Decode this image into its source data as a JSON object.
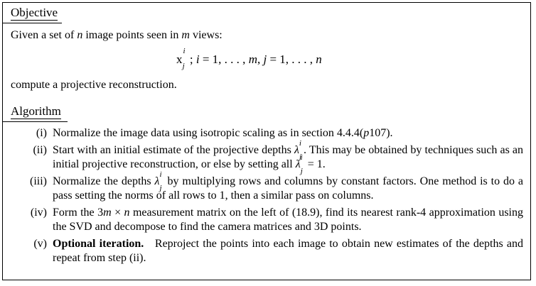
{
  "objective": {
    "heading": "Objective",
    "intro": "Given a set of n image points seen in m views:",
    "formula": "x_j^i ; i = 1, . . . , m, j = 1, . . . , n",
    "outro": "compute a projective reconstruction."
  },
  "algorithm": {
    "heading": "Algorithm",
    "steps": [
      {
        "num": "(i)",
        "text": "Normalize the image data using isotropic scaling as in section 4.4.4(p107)."
      },
      {
        "num": "(ii)",
        "text": "Start with an initial estimate of the projective depths λ_j^i. This may be obtained by techniques such as an initial projective reconstruction, or else by setting all λ_j^i = 1."
      },
      {
        "num": "(iii)",
        "text": "Normalize the depths λ_j^i by multiplying rows and columns by constant factors. One method is to do a pass setting the norms of all rows to 1, then a similar pass on columns."
      },
      {
        "num": "(iv)",
        "text": "Form the 3m × n measurement matrix on the left of (18.9), find its nearest rank-4 approximation using the SVD and decompose to find the camera matrices and 3D points."
      },
      {
        "num": "(v)",
        "bold": "Optional iteration.",
        "text": "Reproject the points into each image to obtain new estimates of the depths and repeat from step (ii)."
      }
    ]
  }
}
